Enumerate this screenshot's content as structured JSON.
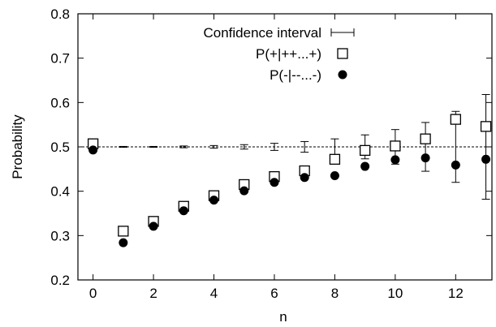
{
  "chart_data": {
    "type": "scatter",
    "xlabel": "n",
    "ylabel": "Probability",
    "xlim": [
      -0.5,
      13.2
    ],
    "ylim": [
      0.2,
      0.8
    ],
    "x_ticks": [
      "0",
      "2",
      "4",
      "6",
      "8",
      "10",
      "12"
    ],
    "y_ticks": [
      "0.2",
      "0.3",
      "0.4",
      "0.5",
      "0.6",
      "0.7",
      "0.8"
    ],
    "reference_line": {
      "y": 0.5,
      "style": "dashed"
    },
    "legend_position": "top-center",
    "series": [
      {
        "name": "Confidence interval",
        "marker": "errorbar",
        "x": [
          1,
          2,
          3,
          4,
          5,
          6,
          7,
          8,
          9,
          10,
          11,
          12,
          13
        ],
        "center": [
          0.5,
          0.5,
          0.5,
          0.5,
          0.5,
          0.5,
          0.5,
          0.5,
          0.5,
          0.5,
          0.5,
          0.5,
          0.5
        ],
        "low": [
          0.499,
          0.499,
          0.498,
          0.497,
          0.495,
          0.492,
          0.488,
          0.482,
          0.473,
          0.461,
          0.445,
          0.42,
          0.382
        ],
        "high": [
          0.501,
          0.501,
          0.502,
          0.503,
          0.505,
          0.508,
          0.512,
          0.518,
          0.527,
          0.539,
          0.555,
          0.58,
          0.618
        ]
      },
      {
        "name": "P(+|++...+)",
        "marker": "open-square",
        "x": [
          0,
          1,
          2,
          3,
          4,
          5,
          6,
          7,
          8,
          9,
          10,
          11,
          12,
          13
        ],
        "values": [
          0.507,
          0.31,
          0.332,
          0.366,
          0.39,
          0.415,
          0.433,
          0.446,
          0.472,
          0.492,
          0.502,
          0.518,
          0.562,
          0.546
        ]
      },
      {
        "name": "P(-|--...-)",
        "marker": "filled-circle",
        "x": [
          0,
          1,
          2,
          3,
          4,
          5,
          6,
          7,
          8,
          9,
          10,
          11,
          12,
          13
        ],
        "values": [
          0.493,
          0.284,
          0.321,
          0.356,
          0.38,
          0.401,
          0.42,
          0.431,
          0.435,
          0.456,
          0.471,
          0.475,
          0.459,
          0.472
        ]
      }
    ]
  }
}
